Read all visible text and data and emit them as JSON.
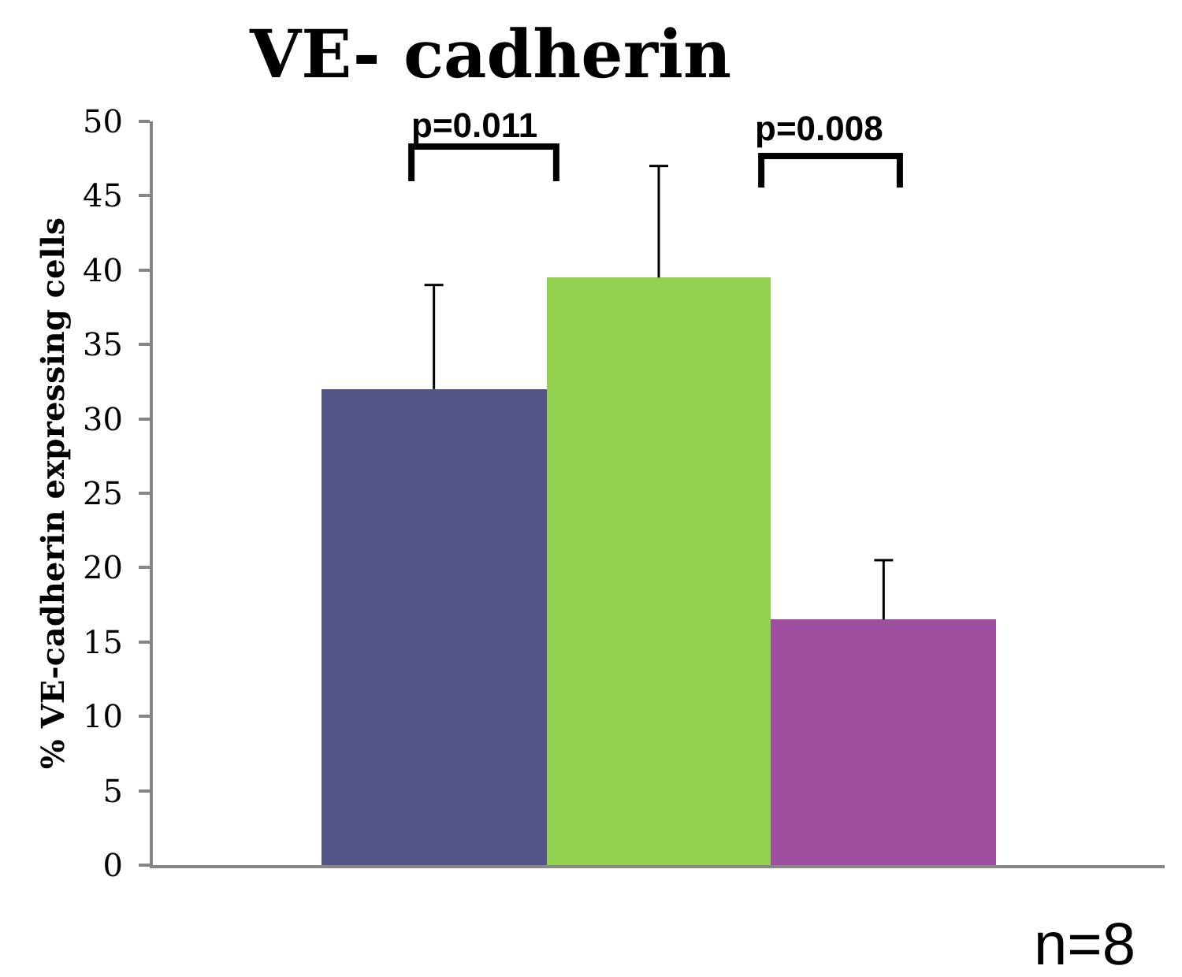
{
  "chart_data": {
    "type": "bar",
    "title": "VE- cadherin",
    "ylabel": "% VE-cadherin expressing cells",
    "categories": [
      null,
      null,
      null
    ],
    "values": [
      32,
      39.5,
      16.5
    ],
    "colors": [
      "#545587",
      "#92d050",
      "#9e4fa0"
    ],
    "errors": [
      [
        32,
        39
      ],
      [
        39.5,
        47
      ],
      [
        16.5,
        20.5
      ]
    ],
    "ylim": [
      0,
      50
    ],
    "yticks": [
      0,
      5,
      10,
      15,
      20,
      25,
      30,
      35,
      40,
      45,
      50
    ],
    "tick_labels": "y",
    "annotations": [
      "p=0.011",
      "p=0.008",
      "n=8"
    ]
  }
}
